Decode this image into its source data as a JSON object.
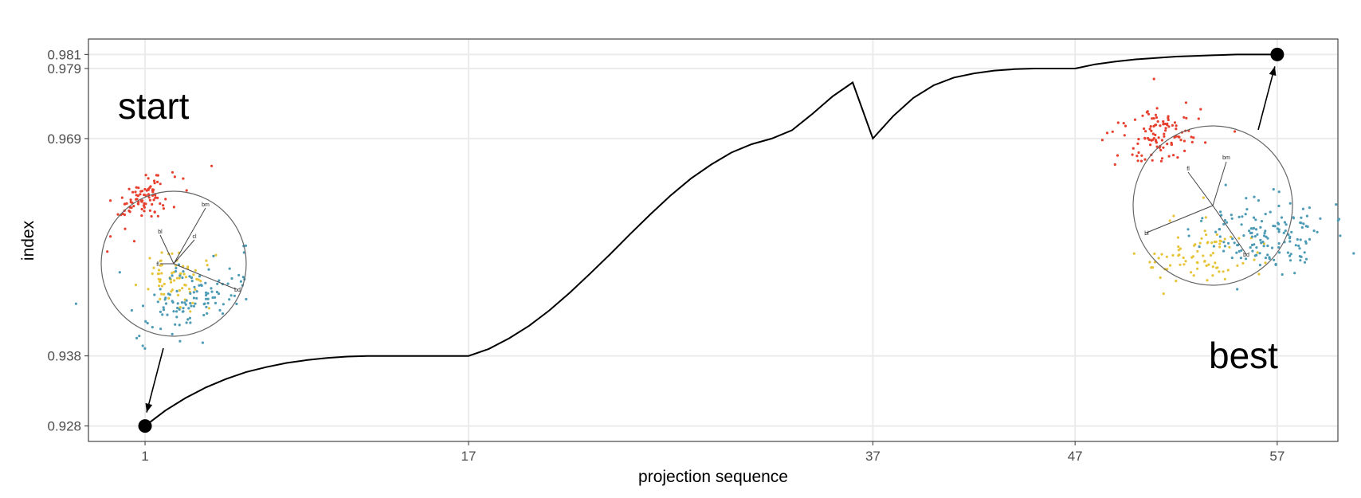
{
  "chart_data": {
    "type": "line",
    "xlabel": "projection sequence",
    "ylabel": "index",
    "x_ticks": [
      1,
      17,
      37,
      47,
      57
    ],
    "y_ticks": [
      0.928,
      0.938,
      0.969,
      0.979,
      0.981
    ],
    "y_tick_labels": [
      "0.928",
      "0.938",
      "0.969",
      "0.979",
      "0.981"
    ],
    "xlim": [
      -1.8,
      60
    ],
    "ylim": [
      0.9258,
      0.9832
    ],
    "grid": true,
    "series": [
      {
        "x": [
          1,
          2,
          3,
          4,
          5,
          6,
          7,
          8,
          9,
          10,
          11,
          12,
          13,
          14,
          15,
          16,
          17,
          18,
          19,
          20,
          21,
          22,
          23,
          24,
          25,
          26,
          27,
          28,
          29,
          30,
          31,
          32,
          33,
          34,
          35,
          36,
          37,
          38,
          39,
          40,
          41,
          42,
          43,
          44,
          45,
          46,
          47,
          48,
          49,
          50,
          51,
          52,
          53,
          54,
          55,
          56,
          57
        ],
        "y": [
          0.928,
          0.9302,
          0.932,
          0.9335,
          0.9347,
          0.9357,
          0.9364,
          0.937,
          0.9374,
          0.9377,
          0.9379,
          0.938,
          0.938,
          0.938,
          0.938,
          0.938,
          0.938,
          0.939,
          0.9405,
          0.9423,
          0.9445,
          0.947,
          0.9497,
          0.9525,
          0.9554,
          0.9582,
          0.9609,
          0.9633,
          0.9653,
          0.967,
          0.9682,
          0.969,
          0.9702,
          0.9725,
          0.975,
          0.977,
          0.969,
          0.9722,
          0.9748,
          0.9766,
          0.9777,
          0.9783,
          0.9787,
          0.9789,
          0.979,
          0.979,
          0.979,
          0.9796,
          0.98,
          0.9803,
          0.9805,
          0.9807,
          0.9808,
          0.9809,
          0.981,
          0.981,
          0.981
        ]
      }
    ],
    "highlight_points": [
      {
        "x": 1,
        "y": 0.928
      },
      {
        "x": 57,
        "y": 0.981
      }
    ],
    "annotations": {
      "start": "start",
      "best": "best"
    },
    "projection_axes": {
      "start": [
        "bm",
        "bl",
        "fl",
        "bd",
        "cl"
      ],
      "best": [
        "bm",
        "fl",
        "bl",
        "bd"
      ]
    },
    "colors": {
      "line": "#000000",
      "grid": "#ebebeb",
      "cluster_red": "#e7402f",
      "cluster_yellow": "#e6c53b",
      "cluster_blue": "#4d9bb5"
    }
  }
}
